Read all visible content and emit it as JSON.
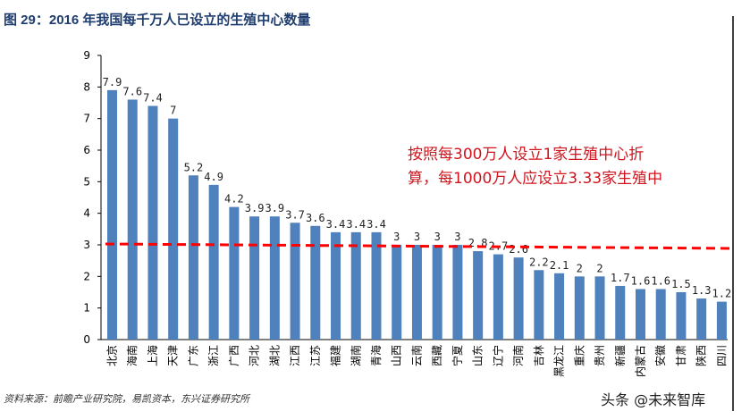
{
  "title": "图 29：2016 年我国每千万人已设立的生殖中心数量",
  "source": "资料来源：前瞻产业研究院，易凯资本，东兴证券研究所",
  "watermark": "头条 @未来智库",
  "chart_data": {
    "type": "bar",
    "title": "图 29：2016 年我国每千万人已设立的生殖中心数量",
    "xlabel": "",
    "ylabel": "",
    "ylim": [
      0,
      9
    ],
    "yticks": [
      0,
      1,
      2,
      3,
      4,
      5,
      6,
      7,
      8,
      9
    ],
    "grid": false,
    "bar_color": "#4f81bd",
    "categories": [
      "北京",
      "海南",
      "上海",
      "天津",
      "广东",
      "浙江",
      "广西",
      "河北",
      "湖北",
      "江西",
      "江苏",
      "福建",
      "湖南",
      "青海",
      "山西",
      "云南",
      "西藏",
      "宁夏",
      "山东",
      "辽宁",
      "河南",
      "吉林",
      "黑龙江",
      "重庆",
      "贵州",
      "新疆",
      "内蒙古",
      "安徽",
      "甘肃",
      "陕西",
      "四川"
    ],
    "values": [
      7.9,
      7.6,
      7.4,
      7,
      5.2,
      4.9,
      4.2,
      3.9,
      3.9,
      3.7,
      3.6,
      3.4,
      3.4,
      3.4,
      3,
      3,
      3,
      3,
      2.8,
      2.7,
      2.6,
      2.2,
      2.1,
      2,
      2,
      1.7,
      1.6,
      1.6,
      1.5,
      1.3,
      1.2
    ],
    "reference_line": {
      "value": 3.0,
      "color": "#ff0000",
      "style": "dashed"
    },
    "annotation": {
      "lines": [
        "按照每300万人设立1家生殖中心折",
        "算，每1000万人应设立3.33家生殖中"
      ],
      "color": "#d0141e"
    }
  }
}
